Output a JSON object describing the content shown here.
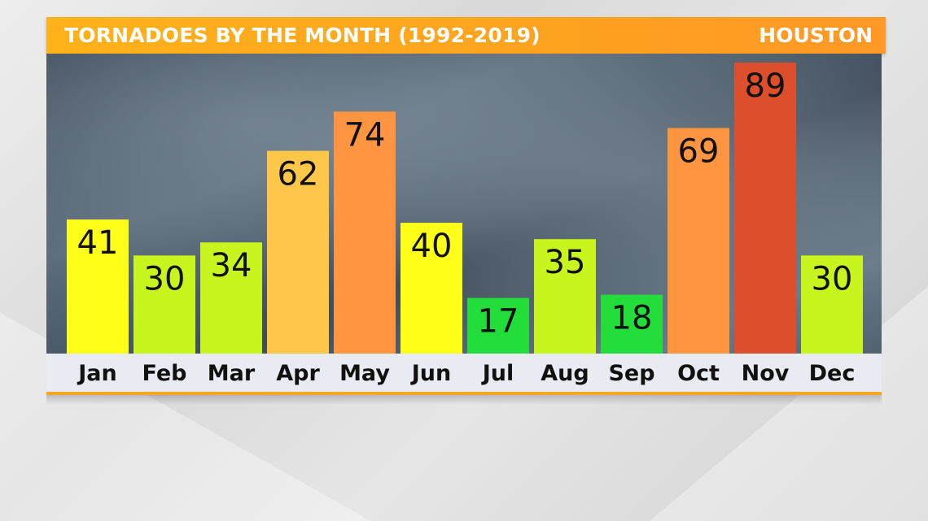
{
  "header": {
    "title": "TORNADOES BY THE MONTH (1992-2019)",
    "location": "HOUSTON"
  },
  "colors": {
    "header_bg": "#ffa51e",
    "header_text": "#ffffff",
    "label_strip": "#e8ecf2",
    "accent_line": "#f5a623"
  },
  "chart_data": {
    "type": "bar",
    "title": "TORNADOES BY THE MONTH (1992-2019)",
    "xlabel": "",
    "ylabel": "",
    "ylim": [
      0,
      89
    ],
    "grid": false,
    "categories": [
      "Jan",
      "Feb",
      "Mar",
      "Apr",
      "May",
      "Jun",
      "Jul",
      "Aug",
      "Sep",
      "Oct",
      "Nov",
      "Dec"
    ],
    "values": [
      41,
      30,
      34,
      62,
      74,
      40,
      17,
      35,
      18,
      69,
      89,
      30
    ],
    "bar_colors": [
      "#ffff1a",
      "#c8f51e",
      "#c8f51e",
      "#ffc74a",
      "#ff9540",
      "#ffff1a",
      "#22dd3a",
      "#c8f51e",
      "#22dd3a",
      "#ff9540",
      "#dd4e2c",
      "#c8f51e"
    ]
  }
}
